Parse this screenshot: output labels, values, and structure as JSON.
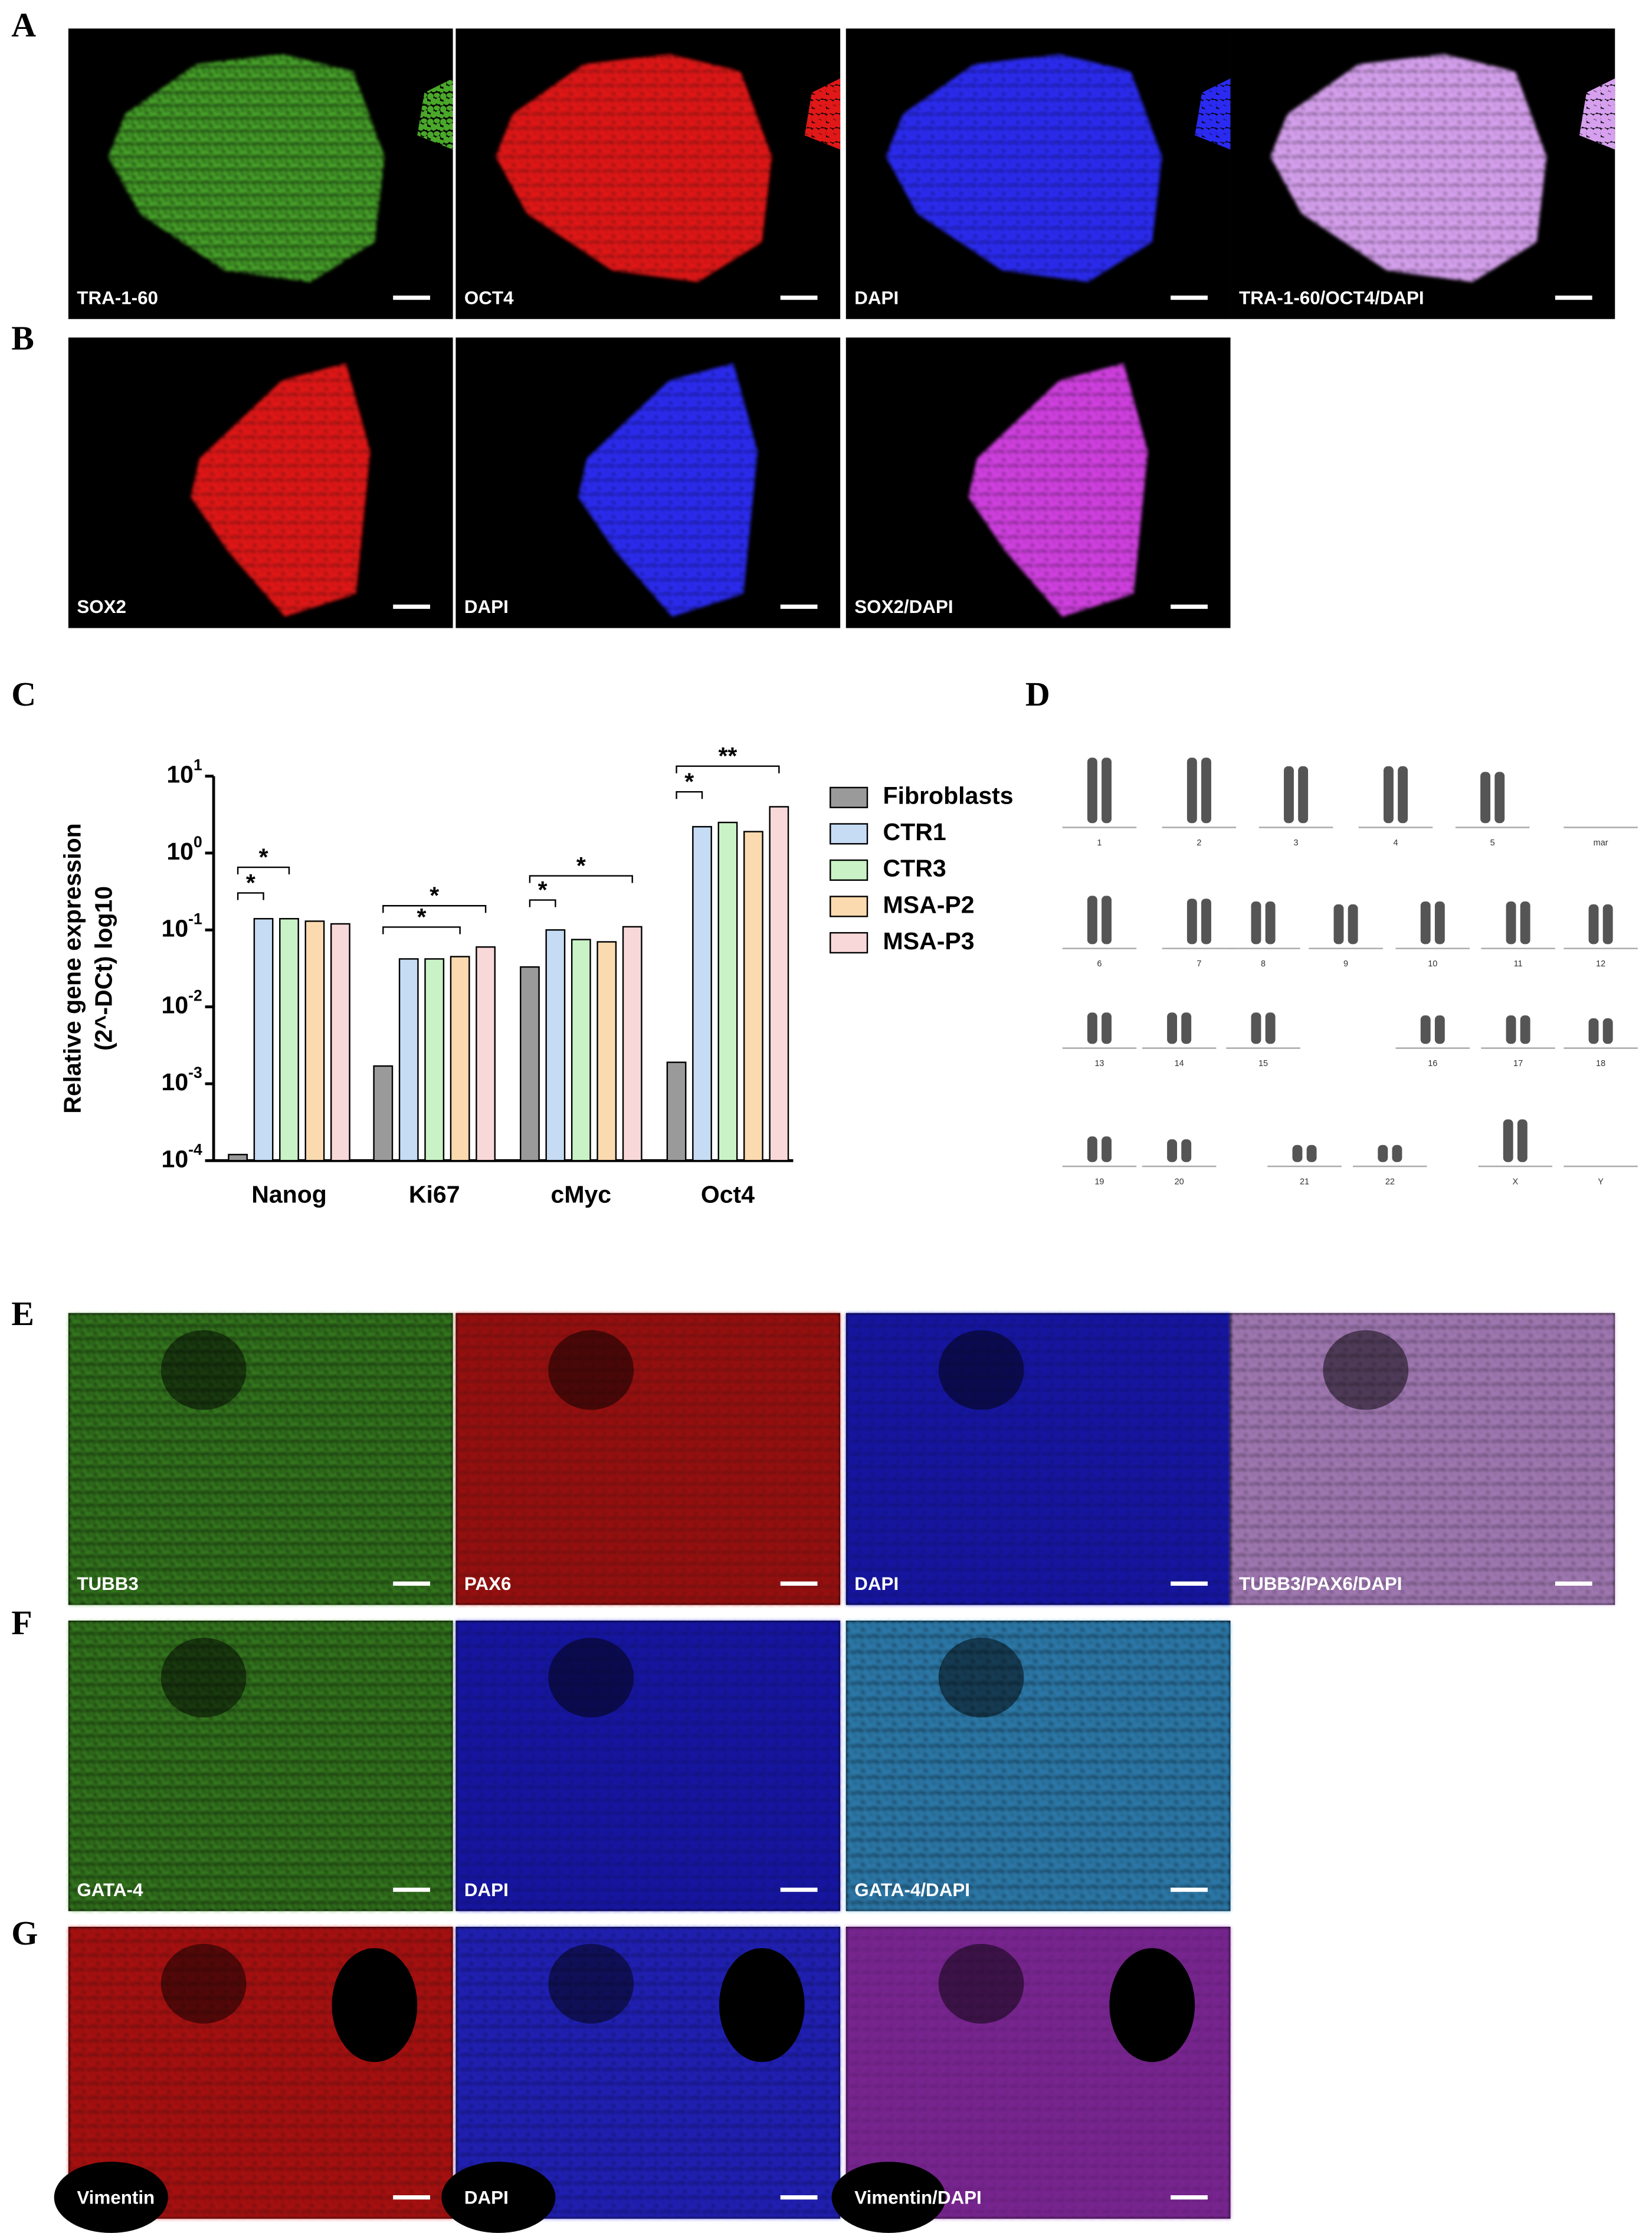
{
  "panel_letters": [
    "A",
    "B",
    "C",
    "D",
    "E",
    "F",
    "G"
  ],
  "image_rows": [
    {
      "images": [
        "TRA-1-60",
        "OCT4",
        "DAPI",
        "TRA-1-60/OCT4/DAPI"
      ]
    },
    {
      "images": [
        "SOX2",
        "DAPI",
        "SOX2/DAPI"
      ]
    },
    {
      "images": [
        "TUBB3",
        "PAX6",
        "DAPI",
        "TUBB3/PAX6/DAPI"
      ]
    },
    {
      "images": [
        "GATA-4",
        "DAPI",
        "GATA-4/DAPI"
      ]
    },
    {
      "images": [
        "Vimentin",
        "DAPI",
        "Vimentin/DAPI"
      ]
    }
  ],
  "karyotype": {
    "labels": [
      "1",
      "2",
      "3",
      "4",
      "5",
      "mar",
      "6",
      "7",
      "8",
      "9",
      "10",
      "11",
      "12",
      "13",
      "14",
      "15",
      "16",
      "17",
      "18",
      "19",
      "20",
      "21",
      "22",
      "X",
      "Y"
    ]
  },
  "chart_data": {
    "type": "bar",
    "ylabel": [
      "Relative gene expression",
      "(2^-DCt) log10"
    ],
    "categories": [
      "Nanog",
      "Ki67",
      "cMyc",
      "Oct4"
    ],
    "series": [
      {
        "name": "Fibroblasts",
        "color": "#9a9a9a",
        "values": [
          0.00012,
          0.0017,
          0.033,
          0.0019
        ]
      },
      {
        "name": "CTR1",
        "color": "#c6dcf4",
        "values": [
          0.14,
          0.042,
          0.1,
          2.2
        ]
      },
      {
        "name": "CTR3",
        "color": "#c9f3c6",
        "values": [
          0.14,
          0.042,
          0.075,
          2.5
        ]
      },
      {
        "name": "MSA-P2",
        "color": "#fbdab0",
        "values": [
          0.13,
          0.045,
          0.07,
          1.9
        ]
      },
      {
        "name": "MSA-P3",
        "color": "#f8d8d8",
        "values": [
          0.12,
          0.06,
          0.11,
          4.0
        ]
      }
    ],
    "log_scale": true,
    "ylim": [
      0.0001,
      10
    ],
    "yticks": [
      {
        "value": 0.0001,
        "label": "10^-4"
      },
      {
        "value": 0.001,
        "label": "10^-3"
      },
      {
        "value": 0.01,
        "label": "10^-2"
      },
      {
        "value": 0.1,
        "label": "10^-1"
      },
      {
        "value": 1,
        "label": "10^0"
      },
      {
        "value": 10,
        "label": "10^1"
      }
    ],
    "annotations": [
      "*",
      "*",
      "*",
      "*",
      "*",
      "*",
      "*",
      "**"
    ],
    "legend": "right"
  }
}
